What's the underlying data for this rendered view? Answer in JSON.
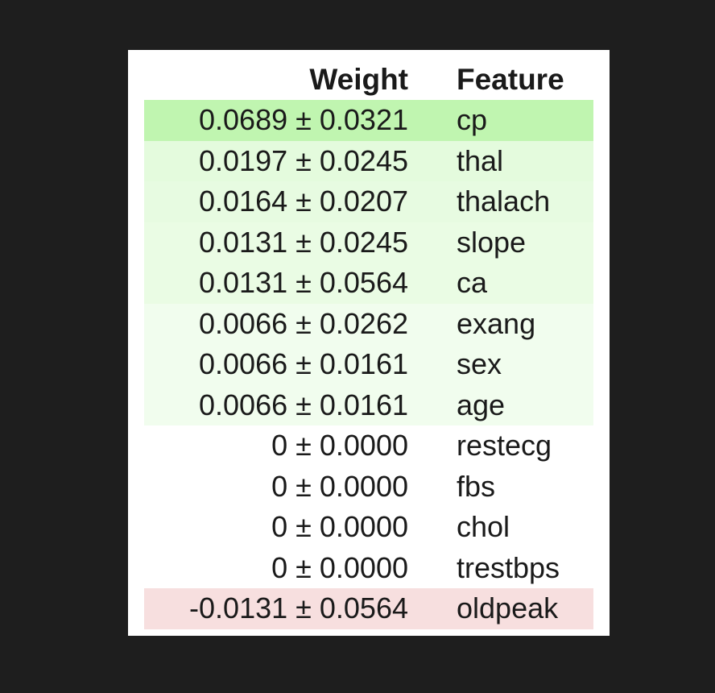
{
  "table": {
    "header": {
      "weight": "Weight",
      "feature": "Feature"
    },
    "rows": [
      {
        "weight": "0.0689 ± 0.0321",
        "feature": "cp",
        "bg": "#c0f5b0"
      },
      {
        "weight": "0.0197 ± 0.0245",
        "feature": "thal",
        "bg": "#e4fbdd"
      },
      {
        "weight": "0.0164 ± 0.0207",
        "feature": "thalach",
        "bg": "#e7fbe1"
      },
      {
        "weight": "0.0131 ± 0.0245",
        "feature": "slope",
        "bg": "#eafce4"
      },
      {
        "weight": "0.0131 ± 0.0564",
        "feature": "ca",
        "bg": "#eafce4"
      },
      {
        "weight": "0.0066 ± 0.0262",
        "feature": "exang",
        "bg": "#f1fdee"
      },
      {
        "weight": "0.0066 ± 0.0161",
        "feature": "sex",
        "bg": "#f1fdee"
      },
      {
        "weight": "0.0066 ± 0.0161",
        "feature": "age",
        "bg": "#f1fdee"
      },
      {
        "weight": "0 ± 0.0000",
        "feature": "restecg",
        "bg": "#ffffff"
      },
      {
        "weight": "0 ± 0.0000",
        "feature": "fbs",
        "bg": "#ffffff"
      },
      {
        "weight": "0 ± 0.0000",
        "feature": "chol",
        "bg": "#ffffff"
      },
      {
        "weight": "0 ± 0.0000",
        "feature": "trestbps",
        "bg": "#ffffff"
      },
      {
        "weight": "-0.0131 ± 0.0564",
        "feature": "oldpeak",
        "bg": "#f7dfdf"
      }
    ]
  }
}
